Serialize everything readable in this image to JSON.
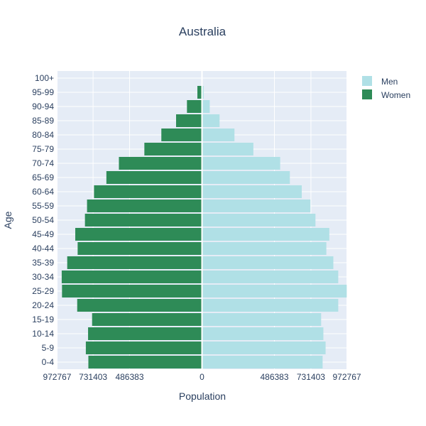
{
  "chart_data": {
    "type": "bar",
    "orientation": "horizontal",
    "title": "Australia",
    "xlabel": "Population",
    "ylabel": "Age",
    "categories": [
      "0-4",
      "5-9",
      "10-14",
      "15-19",
      "20-24",
      "25-29",
      "30-34",
      "35-39",
      "40-44",
      "45-49",
      "50-54",
      "55-59",
      "60-64",
      "65-69",
      "70-74",
      "75-79",
      "80-84",
      "85-89",
      "90-94",
      "95-99",
      "100+"
    ],
    "series": [
      {
        "name": "Men",
        "color": "#b0e0e6",
        "values": [
          810000,
          830000,
          815000,
          800000,
          915000,
          972000,
          915000,
          882000,
          835000,
          855000,
          762000,
          728000,
          670000,
          590000,
          525000,
          345000,
          218000,
          118000,
          52000,
          11000,
          2000
        ]
      },
      {
        "name": "Women",
        "color": "#2e8b57",
        "values": [
          763000,
          780000,
          765000,
          738000,
          838000,
          940000,
          942000,
          905000,
          835000,
          851000,
          786000,
          772000,
          725000,
          642000,
          558000,
          387000,
          273000,
          174000,
          101000,
          31000,
          4000
        ]
      }
    ],
    "x_ticks": {
      "left": [
        "972767",
        "731403",
        "486383"
      ],
      "center": "0",
      "right": [
        "486383",
        "731403",
        "972767"
      ]
    },
    "xlim": [
      -975000,
      975000
    ],
    "grid": true,
    "legend_position": "top-right"
  }
}
